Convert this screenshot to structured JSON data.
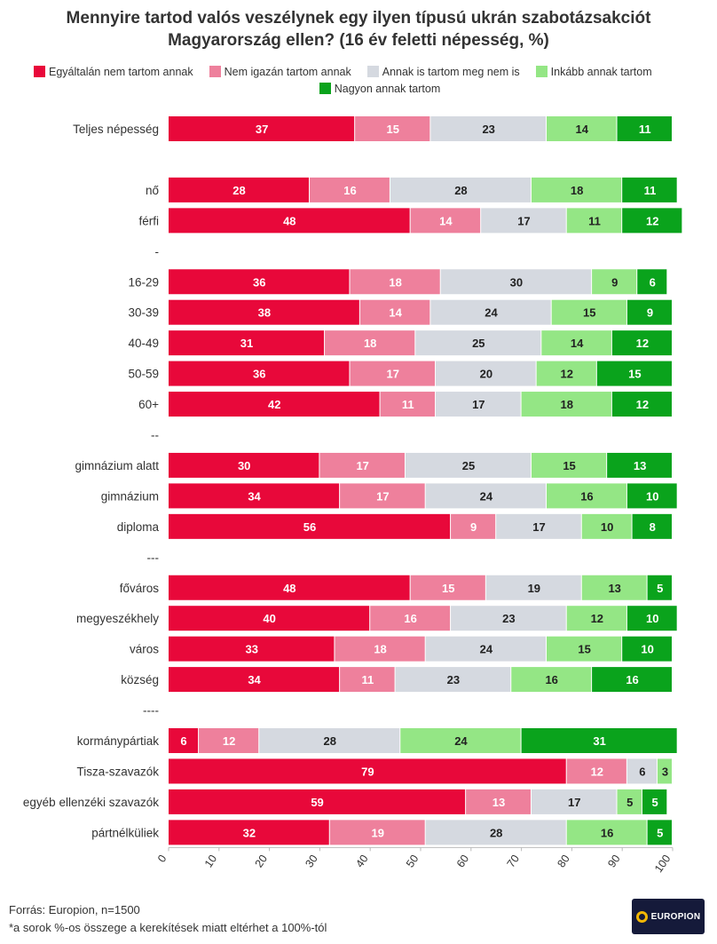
{
  "title_line1": "Mennyire tartod valós veszélynek egy ilyen típusú ukrán szabotázsakciót",
  "title_line2": "Magyarország ellen? (16 év feletti népesség, %)",
  "footer_source": "Forrás: Europion, n=1500",
  "footer_note": "*a sorok %-os összege a kerekítések miatt eltérhet a 100%-tól",
  "logo_text": "EUROPION",
  "colors": {
    "s1": "#e8083a",
    "s2": "#ee809c",
    "s3": "#d5d9e0",
    "s4": "#94e685",
    "s5": "#0aa31c"
  },
  "chart_data": {
    "type": "bar",
    "orientation": "horizontal",
    "stacked": true,
    "title": "Mennyire tartod valós veszélynek egy ilyen típusú ukrán szabotázsakciót Magyarország ellen? (16 év feletti népesség, %)",
    "xlim": [
      0,
      100
    ],
    "xticks": [
      0,
      10,
      20,
      30,
      40,
      50,
      60,
      70,
      80,
      90,
      100
    ],
    "legend_position": "top",
    "series_names": [
      "Egyáltalán nem tartom annak",
      "Nem igazán tartom annak",
      "Annak is tartom meg nem is",
      "Inkább annak tartom",
      "Nagyon annak tartom"
    ],
    "rows": [
      {
        "label": "Teljes népesség",
        "values": [
          37,
          15,
          23,
          14,
          11
        ]
      },
      {
        "label": "",
        "values": []
      },
      {
        "label": "nő",
        "values": [
          28,
          16,
          28,
          18,
          11
        ]
      },
      {
        "label": "férfi",
        "values": [
          48,
          14,
          17,
          11,
          12
        ]
      },
      {
        "label": "-",
        "values": []
      },
      {
        "label": "16-29",
        "values": [
          36,
          18,
          30,
          9,
          6
        ]
      },
      {
        "label": "30-39",
        "values": [
          38,
          14,
          24,
          15,
          9
        ]
      },
      {
        "label": "40-49",
        "values": [
          31,
          18,
          25,
          14,
          12
        ]
      },
      {
        "label": "50-59",
        "values": [
          36,
          17,
          20,
          12,
          15
        ]
      },
      {
        "label": "60+",
        "values": [
          42,
          11,
          17,
          18,
          12
        ]
      },
      {
        "label": "--",
        "values": []
      },
      {
        "label": "gimnázium alatt",
        "values": [
          30,
          17,
          25,
          15,
          13
        ]
      },
      {
        "label": "gimnázium",
        "values": [
          34,
          17,
          24,
          16,
          10
        ]
      },
      {
        "label": "diploma",
        "values": [
          56,
          9,
          17,
          10,
          8
        ]
      },
      {
        "label": "---",
        "values": []
      },
      {
        "label": "főváros",
        "values": [
          48,
          15,
          19,
          13,
          5
        ]
      },
      {
        "label": "megyeszékhely",
        "values": [
          40,
          16,
          23,
          12,
          10
        ]
      },
      {
        "label": "város",
        "values": [
          33,
          18,
          24,
          15,
          10
        ]
      },
      {
        "label": "község",
        "values": [
          34,
          11,
          23,
          16,
          16
        ]
      },
      {
        "label": "----",
        "values": []
      },
      {
        "label": "kormánypártiak",
        "values": [
          6,
          12,
          28,
          24,
          31
        ]
      },
      {
        "label": "Tisza-szavazók",
        "values": [
          79,
          12,
          6,
          3,
          0
        ]
      },
      {
        "label": "egyéb ellenzéki szavazók",
        "values": [
          59,
          13,
          17,
          5,
          5
        ]
      },
      {
        "label": "pártnélküliek",
        "values": [
          32,
          19,
          28,
          16,
          5
        ]
      }
    ]
  }
}
